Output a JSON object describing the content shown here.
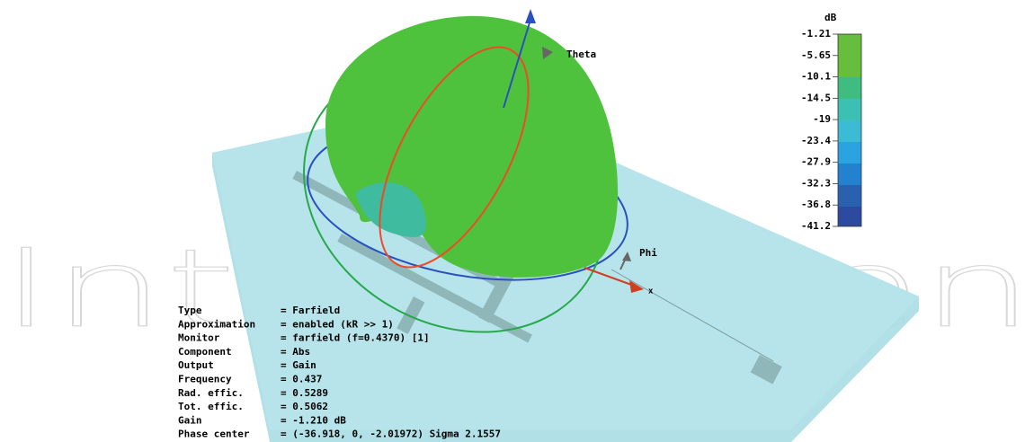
{
  "watermark": "IntechOpen",
  "colorbar": {
    "unit": "dB",
    "labels": [
      "-1.21",
      "-5.65",
      "-10.1",
      "-14.5",
      "-19",
      "-23.4",
      "-27.9",
      "-32.3",
      "-36.8",
      "-41.2"
    ]
  },
  "axes": {
    "theta": "Theta",
    "phi": "Phi",
    "x": "x"
  },
  "info": {
    "rows": [
      [
        "Type",
        "= Farfield"
      ],
      [
        "Approximation",
        "= enabled (kR >> 1)"
      ],
      [
        "Monitor",
        "= farfield (f=0.4370) [1]"
      ],
      [
        "Component",
        "= Abs"
      ],
      [
        "Output",
        "= Gain"
      ],
      [
        "Frequency",
        "= 0.437"
      ],
      [
        "Rad. effic.",
        "= 0.5289"
      ],
      [
        "Tot. effic.",
        "= 0.5062"
      ],
      [
        "Gain",
        "= -1.210 dB"
      ],
      [
        "Phase center",
        "= (-36.918, 0, -2.01972) Sigma 2.1557"
      ]
    ]
  }
}
